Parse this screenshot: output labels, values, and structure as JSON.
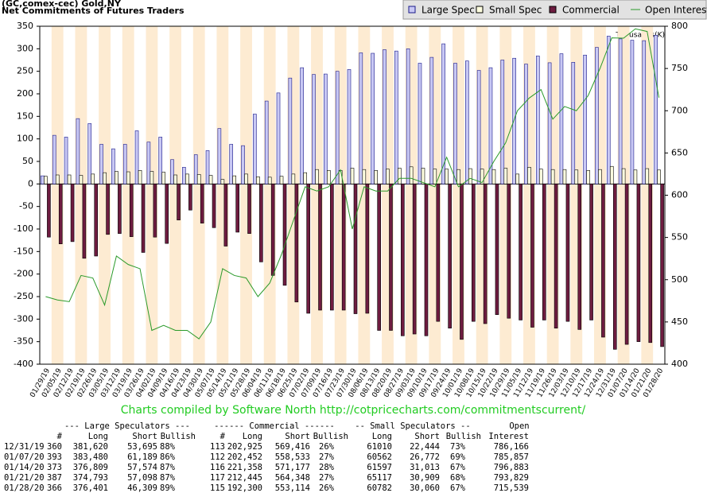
{
  "chart_data": {
    "type": "bar",
    "title": "(GC,comex-cec) Gold,NY",
    "subtitle": "Net Commitments of Futures Traders",
    "y2_label": "Thousands(K)",
    "footer": "Charts compiled by Software North  http://cotpricecharts.com/commitmentscurrent/",
    "categories": [
      "01/29/19",
      "02/05/19",
      "02/12/19",
      "02/19/19",
      "02/26/19",
      "03/05/19",
      "03/12/19",
      "03/19/19",
      "03/26/19",
      "04/02/19",
      "04/09/19",
      "04/16/19",
      "04/23/19",
      "04/30/19",
      "05/07/19",
      "05/14/19",
      "05/21/19",
      "05/28/19",
      "06/04/19",
      "06/11/19",
      "06/18/19",
      "06/25/19",
      "07/02/19",
      "07/09/19",
      "07/16/19",
      "07/23/19",
      "07/30/19",
      "08/06/19",
      "08/13/19",
      "08/20/19",
      "08/27/19",
      "09/03/19",
      "09/10/19",
      "09/17/19",
      "09/24/19",
      "10/01/19",
      "10/08/19",
      "10/15/19",
      "10/22/19",
      "10/29/19",
      "11/05/19",
      "11/12/19",
      "11/19/19",
      "11/26/19",
      "12/03/19",
      "12/10/19",
      "12/17/19",
      "12/24/19",
      "12/31/19",
      "01/07/20",
      "01/14/20",
      "01/21/20",
      "01/28/20"
    ],
    "series": [
      {
        "name": "Large Spec",
        "color": "#c8c8f4",
        "values": [
          18,
          108,
          104,
          145,
          134,
          88,
          78,
          88,
          118,
          93,
          104,
          54,
          37,
          65,
          74,
          123,
          88,
          85,
          155,
          184,
          202,
          235,
          258,
          243,
          244,
          250,
          254,
          291,
          290,
          298,
          295,
          300,
          268,
          281,
          311,
          268,
          273,
          252,
          258,
          275,
          279,
          266,
          284,
          269,
          289,
          270,
          286,
          303,
          328,
          322,
          319,
          318,
          330
        ]
      },
      {
        "name": "Small Spec",
        "color": "#ffffe0",
        "values": [
          17,
          20,
          20,
          19,
          22,
          25,
          28,
          27,
          30,
          28,
          26,
          20,
          22,
          21,
          19,
          10,
          18,
          22,
          16,
          15,
          17,
          22,
          25,
          32,
          30,
          30,
          35,
          32,
          30,
          33,
          35,
          38,
          35,
          33,
          33,
          32,
          34,
          33,
          32,
          35,
          22,
          37,
          33,
          32,
          32,
          31,
          30,
          32,
          39,
          34,
          31,
          34,
          31
        ]
      },
      {
        "name": "Commercial",
        "color": "#6e1c40",
        "values": [
          -118,
          -133,
          -128,
          -165,
          -160,
          -112,
          -110,
          -117,
          -152,
          -118,
          -132,
          -80,
          -58,
          -87,
          -97,
          -138,
          -107,
          -110,
          -173,
          -203,
          -225,
          -262,
          -287,
          -280,
          -280,
          -280,
          -288,
          -287,
          -325,
          -325,
          -337,
          -333,
          -337,
          -305,
          -320,
          -345,
          -305,
          -310,
          -290,
          -298,
          -302,
          -318,
          -302,
          -320,
          -305,
          -323,
          -302,
          -340,
          -367,
          -356,
          -350,
          -352,
          -361
        ]
      },
      {
        "name": "Open Interest",
        "color": "#2a9a2a",
        "axis": "y2",
        "type": "line",
        "values": [
          480,
          476,
          474,
          505,
          502,
          470,
          528,
          518,
          513,
          440,
          446,
          440,
          440,
          430,
          450,
          513,
          505,
          502,
          480,
          496,
          530,
          570,
          610,
          605,
          610,
          630,
          560,
          610,
          605,
          605,
          620,
          620,
          615,
          610,
          645,
          610,
          620,
          615,
          640,
          662,
          700,
          715,
          725,
          690,
          705,
          700,
          718,
          750,
          786.2,
          785.9,
          796.9,
          793.8,
          715.5
        ]
      }
    ],
    "ylim": [
      -400,
      350
    ],
    "yticks": [
      350,
      300,
      250,
      200,
      150,
      100,
      50,
      0,
      -50,
      -100,
      -150,
      -200,
      -250,
      -300,
      -350,
      -400
    ],
    "y2lim": [
      400,
      800
    ],
    "y2ticks": [
      800,
      750,
      700,
      650,
      600,
      550,
      500,
      450,
      400
    ],
    "grid": false,
    "legend": "top-right"
  },
  "table": {
    "group_headers": [
      "--- Large Speculators ---",
      "------ Commercial ------",
      "-- Small Speculators --",
      "Open"
    ],
    "columns": [
      "#",
      "Long",
      "Short",
      "Bullish",
      "#",
      "Long",
      "Short",
      "Bullish",
      "Long",
      "Short",
      "Bullish",
      "Interest"
    ],
    "rows": [
      [
        "12/31/19",
        "360",
        "381,620",
        "53,695",
        "88%",
        "113",
        "202,925",
        "569,416",
        "26%",
        "61010",
        "22,444",
        "73%",
        "786,166"
      ],
      [
        "01/07/20",
        "393",
        "383,480",
        "61,189",
        "86%",
        "112",
        "202,452",
        "558,533",
        "27%",
        "60562",
        "26,772",
        "69%",
        "785,857"
      ],
      [
        "01/14/20",
        "373",
        "376,809",
        "57,574",
        "87%",
        "116",
        "221,358",
        "571,177",
        "28%",
        "61597",
        "31,013",
        "67%",
        "796,883"
      ],
      [
        "01/21/20",
        "387",
        "374,793",
        "57,098",
        "87%",
        "117",
        "212,445",
        "564,348",
        "27%",
        "65117",
        "30,909",
        "68%",
        "793,829"
      ],
      [
        "01/28/20",
        "366",
        "376,401",
        "46,309",
        "89%",
        "115",
        "192,300",
        "553,114",
        "26%",
        "60782",
        "30,060",
        "67%",
        "715,539"
      ]
    ]
  }
}
